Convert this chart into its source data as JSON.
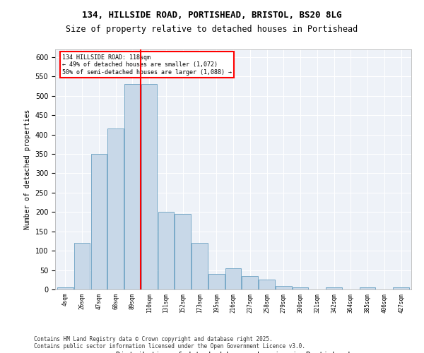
{
  "title_line1": "134, HILLSIDE ROAD, PORTISHEAD, BRISTOL, BS20 8LG",
  "title_line2": "Size of property relative to detached houses in Portishead",
  "xlabel": "Distribution of detached houses by size in Portishead",
  "ylabel": "Number of detached properties",
  "footer": "Contains HM Land Registry data © Crown copyright and database right 2025.\nContains public sector information licensed under the Open Government Licence v3.0.",
  "annotation_line1": "134 HILLSIDE ROAD: 118sqm",
  "annotation_line2": "← 49% of detached houses are smaller (1,072)",
  "annotation_line3": "50% of semi-detached houses are larger (1,088) →",
  "bar_color": "#c8d8e8",
  "bar_edge_color": "#7aaac8",
  "vline_color": "red",
  "vline_x": 4.5,
  "annotation_box_color": "red",
  "background_color": "#eef2f8",
  "plot_background": "#eef2f8",
  "categories": [
    "4sqm",
    "26sqm",
    "47sqm",
    "68sqm",
    "89sqm",
    "110sqm",
    "131sqm",
    "152sqm",
    "173sqm",
    "195sqm",
    "216sqm",
    "237sqm",
    "258sqm",
    "279sqm",
    "300sqm",
    "321sqm",
    "342sqm",
    "364sqm",
    "385sqm",
    "406sqm",
    "427sqm"
  ],
  "values": [
    5,
    120,
    350,
    415,
    530,
    530,
    200,
    195,
    120,
    40,
    55,
    35,
    25,
    10,
    5,
    0,
    5,
    0,
    5,
    0,
    5
  ],
  "ylim": [
    0,
    620
  ],
  "yticks": [
    0,
    50,
    100,
    150,
    200,
    250,
    300,
    350,
    400,
    450,
    500,
    550,
    600
  ]
}
